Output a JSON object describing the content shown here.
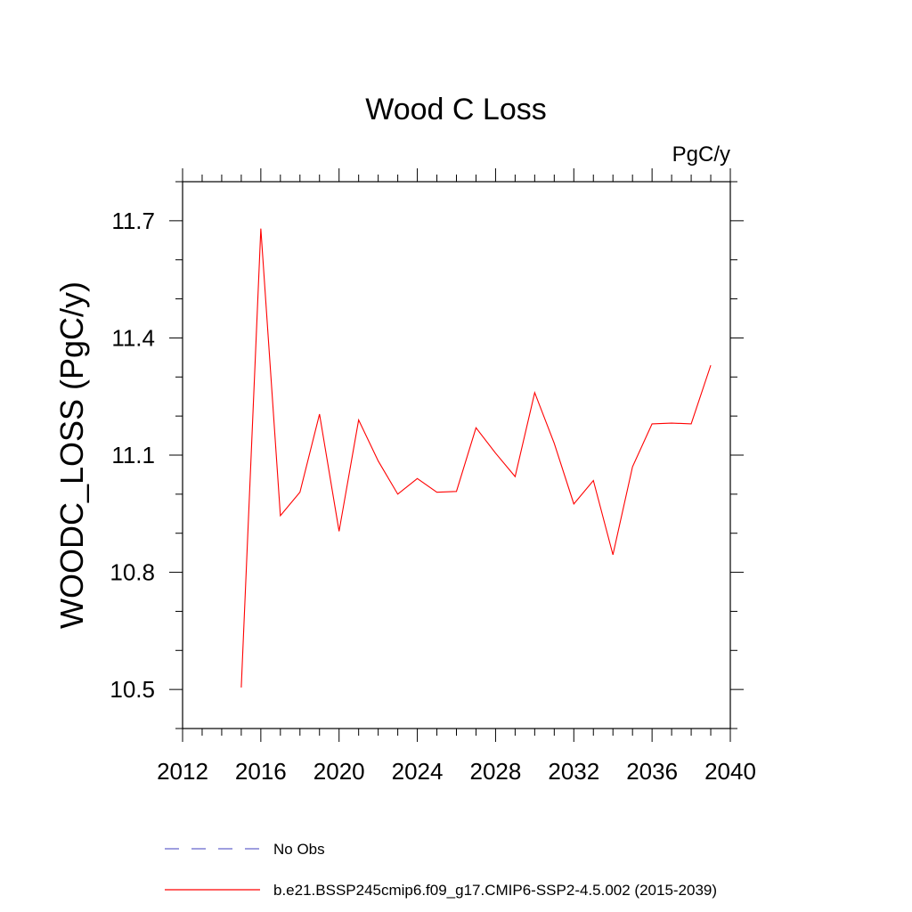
{
  "chart_data": {
    "type": "line",
    "title": "Wood C Loss",
    "units_label": "PgC/y",
    "ylabel": "WOODC_LOSS  (PgC/y)",
    "xlabel": "",
    "xlim": [
      2012,
      2040
    ],
    "ylim": [
      10.4,
      11.8
    ],
    "x_ticks": [
      2012,
      2016,
      2020,
      2024,
      2028,
      2032,
      2036,
      2040
    ],
    "x_tick_labels": [
      "2012",
      "2016",
      "2020",
      "2024",
      "2028",
      "2032",
      "2036",
      "2040"
    ],
    "x_minor_step": 1,
    "y_ticks": [
      10.5,
      10.8,
      11.1,
      11.4,
      11.7
    ],
    "y_tick_labels": [
      "10.5",
      "10.8",
      "11.1",
      "11.4",
      "11.7"
    ],
    "y_minor_step": 0.1,
    "grid": false,
    "series": [
      {
        "name": "b.e21.BSSP245cmip6.f09_g17.CMIP6-SSP2-4.5.002 (2015-2039)",
        "color": "#ff0000",
        "style": "solid",
        "x": [
          2015,
          2016,
          2017,
          2018,
          2019,
          2020,
          2021,
          2022,
          2023,
          2024,
          2025,
          2026,
          2027,
          2028,
          2029,
          2030,
          2031,
          2032,
          2033,
          2034,
          2035,
          2036,
          2037,
          2038,
          2039
        ],
        "values": [
          10.505,
          11.68,
          10.945,
          11.005,
          11.205,
          10.905,
          11.19,
          11.085,
          11.0,
          11.04,
          11.005,
          11.007,
          11.17,
          11.105,
          11.045,
          11.26,
          11.13,
          10.975,
          11.035,
          10.845,
          11.07,
          11.18,
          11.182,
          11.18,
          11.33
        ]
      }
    ],
    "legend": {
      "placement": "bottom",
      "entries": [
        {
          "label": "No Obs",
          "color": "#6666cc",
          "style": "dashed"
        },
        {
          "label": "b.e21.BSSP245cmip6.f09_g17.CMIP6-SSP2-4.5.002 (2015-2039)",
          "color": "#ff0000",
          "style": "solid"
        }
      ]
    }
  }
}
